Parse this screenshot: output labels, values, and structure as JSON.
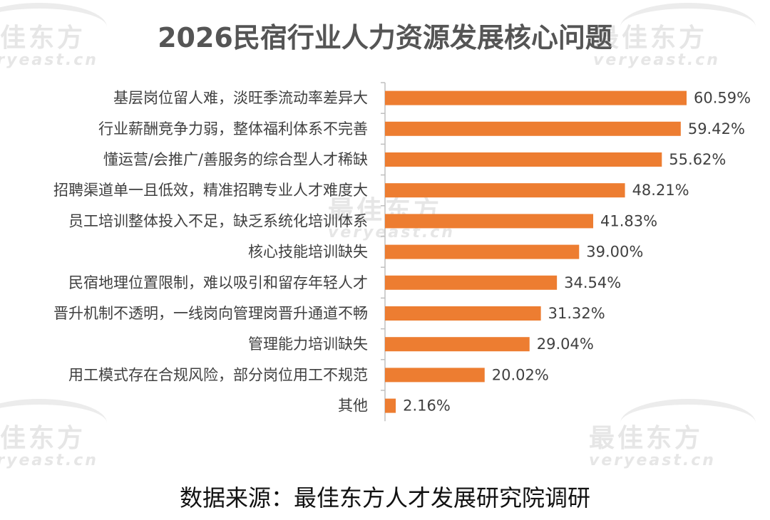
{
  "watermark": {
    "cn": "最佳东方",
    "en": "veryeast.cn"
  },
  "colors": {
    "bar": "#ED7D31",
    "axis": "#bfbfbf",
    "label": "#404040"
  },
  "chart_data": {
    "type": "bar",
    "orientation": "horizontal",
    "title": "2026民宿行业人力资源发展核心问题",
    "categories": [
      "基层岗位留人难，淡旺季流动率差异大",
      "行业薪酬竞争力弱，整体福利体系不完善",
      "懂运营/会推广/善服务的综合型人才稀缺",
      "招聘渠道单一且低效，精准招聘专业人才难度大",
      "员工培训整体投入不足，缺乏系统化培训体系",
      "核心技能培训缺失",
      "民宿地理位置限制，难以吸引和留存年轻人才",
      "晋升机制不透明，一线岗向管理岗晋升通道不畅",
      "管理能力培训缺失",
      "用工模式存在合规风险，部分岗位用工不规范",
      "其他"
    ],
    "values": [
      60.59,
      59.42,
      55.62,
      48.21,
      41.83,
      39.0,
      34.54,
      31.32,
      29.04,
      20.02,
      2.16
    ],
    "value_labels": [
      "60.59%",
      "59.42%",
      "55.62%",
      "48.21%",
      "41.83%",
      "39.00%",
      "34.54%",
      "31.32%",
      "29.04%",
      "20.02%",
      "2.16%"
    ],
    "xlim": [
      0,
      60.59
    ],
    "grid": false,
    "legend": "none"
  },
  "source": "数据来源：最佳东方人才发展研究院调研"
}
